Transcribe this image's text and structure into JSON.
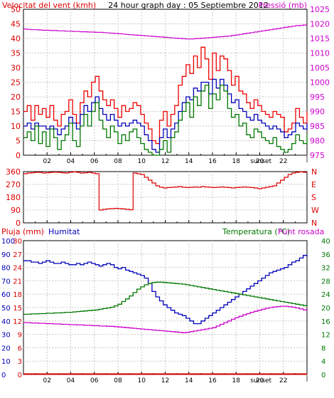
{
  "chart_data": [
    {
      "type": "line",
      "title": "24 hour graph day : 05 Septiembre 2012",
      "left_axis": {
        "label": "Velocitat del vent (kmh)",
        "ticks": [
          0,
          5,
          10,
          15,
          20,
          25,
          30,
          35,
          40,
          45,
          50
        ],
        "range": [
          0,
          50
        ],
        "color": "#dd0000"
      },
      "right_axis": {
        "label": "Pressió (mb)",
        "ticks": [
          975,
          980,
          985,
          990,
          995,
          1000,
          1005,
          1010,
          1015,
          1020,
          1025
        ],
        "range": [
          975,
          1025
        ],
        "color": "#cc00cc"
      },
      "x_ticks": [
        "02",
        "04",
        "06",
        "08",
        "10",
        "12",
        "14",
        "16",
        "18",
        "20",
        "22"
      ],
      "x_marker": "sunset",
      "x_range": [
        0,
        24
      ],
      "sunset_hour": 20.1,
      "grid": true,
      "series": [
        {
          "color": "#ee0000",
          "axis": "left",
          "values": [
            15,
            17,
            12,
            17,
            14,
            16,
            13,
            17,
            12,
            10,
            14,
            15,
            19,
            14,
            11,
            18,
            22,
            20,
            25,
            27,
            22,
            19,
            17,
            19,
            16,
            13,
            17,
            15,
            16,
            18,
            17,
            14,
            11,
            9,
            5,
            4,
            12,
            15,
            10,
            14,
            17,
            24,
            27,
            31,
            28,
            34,
            30,
            37,
            33,
            26,
            35,
            29,
            34,
            33,
            29,
            24,
            27,
            22,
            21,
            18,
            16,
            19,
            17,
            15,
            14,
            13,
            15,
            14,
            13,
            8,
            9,
            11,
            16,
            13,
            11,
            15
          ]
        },
        {
          "color": "#0000bb",
          "axis": "left",
          "values": [
            10,
            11,
            9,
            11,
            10,
            10,
            9,
            10,
            9,
            7,
            9,
            10,
            13,
            11,
            9,
            14,
            17,
            15,
            18,
            20,
            16,
            14,
            12,
            14,
            12,
            10,
            11,
            10,
            11,
            12,
            11,
            10,
            7,
            5,
            2,
            1,
            6,
            9,
            6,
            9,
            11,
            15,
            18,
            20,
            19,
            23,
            22,
            25,
            25,
            21,
            26,
            23,
            26,
            24,
            21,
            18,
            19,
            16,
            15,
            13,
            12,
            14,
            12,
            11,
            10,
            9,
            10,
            9,
            8,
            6,
            7,
            8,
            11,
            10,
            9,
            11
          ]
        },
        {
          "color": "#007700",
          "axis": "left",
          "values": [
            6,
            8,
            5,
            10,
            4,
            8,
            3,
            9,
            6,
            2,
            5,
            7,
            11,
            5,
            3,
            10,
            14,
            10,
            15,
            18,
            12,
            9,
            6,
            10,
            8,
            4,
            7,
            5,
            8,
            9,
            6,
            4,
            2,
            1,
            0,
            0,
            2,
            5,
            1,
            6,
            8,
            12,
            15,
            18,
            13,
            20,
            17,
            22,
            24,
            16,
            21,
            19,
            24,
            22,
            16,
            13,
            14,
            10,
            11,
            7,
            6,
            9,
            8,
            6,
            5,
            4,
            6,
            3,
            2,
            1,
            2,
            4,
            7,
            5,
            4,
            7
          ]
        },
        {
          "color": "#cc00cc",
          "axis": "right",
          "values": [
            1018.2,
            1018.1,
            1018.0,
            1018.0,
            1017.9,
            1017.8,
            1017.8,
            1017.7,
            1017.7,
            1017.6,
            1017.6,
            1017.5,
            1017.5,
            1017.4,
            1017.4,
            1017.3,
            1017.3,
            1017.2,
            1017.2,
            1017.1,
            1017.1,
            1017.0,
            1016.9,
            1016.8,
            1016.7,
            1016.6,
            1016.5,
            1016.4,
            1016.3,
            1016.2,
            1016.1,
            1016.0,
            1015.9,
            1015.8,
            1015.7,
            1015.6,
            1015.5,
            1015.4,
            1015.3,
            1015.2,
            1015.1,
            1015.0,
            1014.9,
            1014.8,
            1014.8,
            1014.9,
            1015.0,
            1015.1,
            1015.2,
            1015.3,
            1015.4,
            1015.5,
            1015.6,
            1015.7,
            1015.8,
            1016.0,
            1016.2,
            1016.4,
            1016.6,
            1016.8,
            1017.0,
            1017.2,
            1017.4,
            1017.6,
            1017.8,
            1018.0,
            1018.2,
            1018.4,
            1018.6,
            1018.8,
            1019.0,
            1019.2,
            1019.4,
            1019.5,
            1019.6,
            1019.7
          ]
        }
      ]
    },
    {
      "type": "line",
      "left_axis": {
        "ticks": [
          0,
          90,
          180,
          270,
          360
        ],
        "range": [
          0,
          360
        ],
        "color": "#dd0000"
      },
      "right_axis": {
        "ticks": [
          "N",
          "E",
          "S",
          "W",
          "N"
        ],
        "color": "#dd0000"
      },
      "x_range": [
        0,
        24
      ],
      "grid": true,
      "series": [
        {
          "color": "#dd0000",
          "values": [
            345,
            350,
            352,
            355,
            355,
            350,
            352,
            355,
            356,
            355,
            352,
            350,
            355,
            358,
            355,
            350,
            352,
            355,
            350,
            345,
            90,
            95,
            98,
            100,
            102,
            100,
            98,
            95,
            92,
            350,
            345,
            340,
            320,
            300,
            280,
            260,
            250,
            245,
            248,
            250,
            252,
            255,
            250,
            248,
            250,
            252,
            250,
            255,
            252,
            250,
            248,
            250,
            252,
            250,
            248,
            245,
            248,
            250,
            252,
            250,
            248,
            245,
            240,
            245,
            250,
            255,
            260,
            280,
            300,
            320,
            340,
            350,
            355,
            358,
            355,
            352
          ]
        }
      ]
    },
    {
      "type": "line",
      "labels": {
        "rain": "Pluja (mm)",
        "humidity": "Humitat",
        "temperature": "Temperatura (°C)",
        "dewpoint": "Punt rosada"
      },
      "left_axis": {
        "ticks": [
          0,
          3,
          6,
          9,
          12,
          15,
          18,
          21,
          24,
          27,
          30
        ],
        "range": [
          0,
          30
        ],
        "color": "#dd0000"
      },
      "humidity_axis": {
        "ticks": [
          0,
          10,
          20,
          30,
          40,
          50,
          60,
          70,
          80,
          90,
          100
        ],
        "range": [
          0,
          100
        ],
        "color": "#0000bb"
      },
      "right_axis": {
        "ticks": [
          0,
          4,
          8,
          12,
          16,
          20,
          24,
          28,
          32,
          36,
          40
        ],
        "range": [
          0,
          40
        ],
        "color": "#007700"
      },
      "x_ticks": [
        "02",
        "04",
        "06",
        "08",
        "10",
        "12",
        "14",
        "16",
        "18",
        "20",
        "22"
      ],
      "x_marker": "sunset",
      "x_range": [
        0,
        24
      ],
      "sunset_hour": 20.1,
      "grid": true,
      "series": [
        {
          "name": "Pluja (mm)",
          "color": "#dd0000",
          "axis": "left",
          "values": [
            0.1,
            0.1,
            0.1,
            0.1,
            0.1,
            0.1,
            0.1,
            0.1,
            0.1,
            0.1,
            0.1,
            0.1,
            0.1,
            0.1,
            0.1,
            0.1,
            0.1,
            0.1,
            0.1,
            0.1,
            0.1,
            0.1,
            0.1,
            0.1,
            0.1,
            0.1,
            0.1,
            0.1,
            0.1,
            0.1,
            0.1,
            0.1,
            0.1,
            0.1,
            0.1,
            0.1,
            0.1,
            0.1,
            0.1,
            0.1,
            0.1,
            0.1,
            0.1,
            0.1,
            0.1,
            0.1,
            0.1,
            0.1,
            0.1,
            0.1,
            0.1,
            0.1,
            0.1,
            0.1,
            0.1,
            0.1,
            0.1,
            0.1,
            0.1,
            0.1,
            0.1,
            0.1,
            0.1,
            0.1,
            0.1,
            0.1,
            0.1,
            0.1,
            0.1,
            0.1,
            0.1,
            0.1,
            0.1,
            0.1,
            0.1,
            0.1
          ]
        },
        {
          "name": "Humitat",
          "color": "#0000bb",
          "axis": "humidity",
          "values": [
            85,
            85,
            84,
            84,
            83,
            84,
            85,
            84,
            83,
            83,
            84,
            83,
            82,
            82,
            83,
            82,
            83,
            84,
            83,
            82,
            81,
            82,
            83,
            82,
            80,
            79,
            80,
            78,
            77,
            76,
            75,
            74,
            72,
            68,
            62,
            58,
            55,
            52,
            50,
            48,
            46,
            45,
            44,
            42,
            40,
            38,
            38,
            40,
            42,
            44,
            46,
            48,
            50,
            52,
            54,
            56,
            58,
            60,
            62,
            64,
            66,
            68,
            70,
            72,
            74,
            76,
            77,
            78,
            79,
            80,
            82,
            84,
            85,
            87,
            89,
            88
          ]
        },
        {
          "name": "Temperatura (°C)",
          "color": "#007700",
          "axis": "right",
          "values": [
            18.0,
            18.0,
            18.1,
            18.1,
            18.2,
            18.2,
            18.3,
            18.3,
            18.4,
            18.4,
            18.5,
            18.6,
            18.6,
            18.7,
            18.8,
            18.9,
            19.0,
            19.1,
            19.2,
            19.3,
            19.5,
            19.7,
            19.9,
            20.1,
            20.5,
            21.0,
            21.8,
            22.6,
            23.5,
            24.5,
            25.5,
            26.2,
            26.8,
            27.2,
            27.5,
            27.6,
            27.6,
            27.5,
            27.4,
            27.3,
            27.2,
            27.1,
            27.0,
            26.8,
            26.6,
            26.4,
            26.2,
            26.0,
            25.8,
            25.6,
            25.4,
            25.2,
            25.0,
            24.8,
            24.6,
            24.4,
            24.2,
            24.0,
            23.8,
            23.6,
            23.4,
            23.2,
            23.0,
            22.8,
            22.6,
            22.4,
            22.2,
            22.0,
            21.8,
            21.6,
            21.4,
            21.2,
            21.0,
            20.8,
            20.6,
            20.4
          ]
        },
        {
          "name": "Punt rosada",
          "color": "#cc00cc",
          "axis": "right",
          "values": [
            15.5,
            15.5,
            15.4,
            15.4,
            15.3,
            15.3,
            15.2,
            15.2,
            15.1,
            15.1,
            15.0,
            15.0,
            14.9,
            14.9,
            14.8,
            14.8,
            14.7,
            14.7,
            14.6,
            14.6,
            14.5,
            14.5,
            14.4,
            14.4,
            14.3,
            14.2,
            14.1,
            14.0,
            13.9,
            13.8,
            13.7,
            13.6,
            13.5,
            13.4,
            13.3,
            13.2,
            13.1,
            13.0,
            12.9,
            12.8,
            12.7,
            12.6,
            12.5,
            12.6,
            12.8,
            13.0,
            13.2,
            13.4,
            13.6,
            13.8,
            14.0,
            14.5,
            15.0,
            15.5,
            16.0,
            16.5,
            17.0,
            17.4,
            17.8,
            18.2,
            18.6,
            18.9,
            19.2,
            19.5,
            19.8,
            20.0,
            20.2,
            20.3,
            20.4,
            20.4,
            20.3,
            20.1,
            19.9,
            19.6,
            19.3,
            19.0
          ]
        }
      ]
    }
  ]
}
